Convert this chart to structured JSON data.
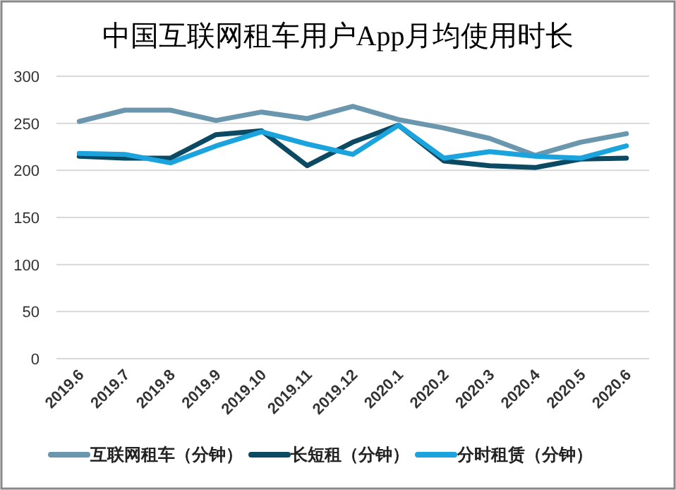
{
  "chart_data": {
    "type": "line",
    "title": "中国互联网租车用户App月均使用时长",
    "categories": [
      "2019.6",
      "2019.7",
      "2019.8",
      "2019.9",
      "2019.10",
      "2019.11",
      "2019.12",
      "2020.1",
      "2020.2",
      "2020.3",
      "2020.4",
      "2020.5",
      "2020.6"
    ],
    "series": [
      {
        "name": "互联网租车（分钟）",
        "color": "#6a97ae",
        "values": [
          252,
          264,
          264,
          253,
          262,
          255,
          268,
          254,
          245,
          234,
          216,
          230,
          239
        ]
      },
      {
        "name": "长短租（分钟）",
        "color": "#0b4a62",
        "values": [
          215,
          213,
          213,
          238,
          242,
          205,
          230,
          248,
          210,
          205,
          203,
          212,
          213
        ]
      },
      {
        "name": "分时租赁（分钟）",
        "color": "#1aa3dc",
        "values": [
          218,
          217,
          208,
          226,
          241,
          228,
          217,
          248,
          213,
          220,
          215,
          213,
          226
        ]
      }
    ],
    "ylim": [
      0,
      300
    ],
    "yticks": [
      0,
      50,
      100,
      150,
      200,
      250,
      300
    ],
    "grid": "y",
    "legend": "bottom",
    "marker": "none",
    "line_style": "solid"
  }
}
